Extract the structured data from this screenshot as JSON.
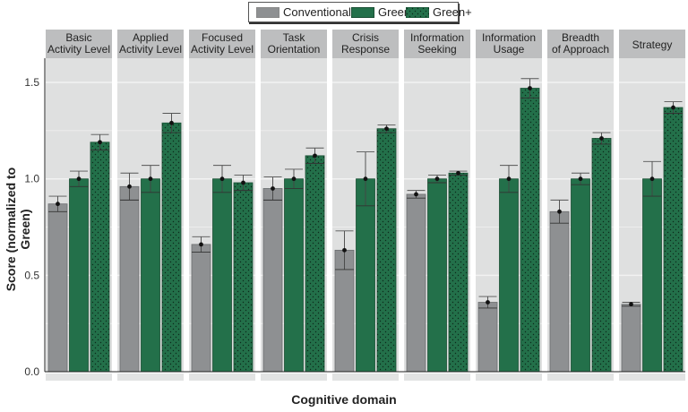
{
  "chart_data": {
    "type": "bar",
    "title": "",
    "xlabel": "Cognitive domain",
    "ylabel": "Score (normalized to Green)",
    "ylim": [
      0,
      1.6
    ],
    "yticks": [
      "0.0",
      "0.5",
      "1.0",
      "1.5"
    ],
    "ytick_values": [
      0,
      0.5,
      1.0,
      1.5
    ],
    "grid": true,
    "legend_position": "top-center",
    "categories": [
      [
        "Basic",
        "Activity Level"
      ],
      [
        "Applied",
        "Activity Level"
      ],
      [
        "Focused",
        "Activity Level"
      ],
      [
        "Task",
        "Orientation"
      ],
      [
        "Crisis",
        "Response"
      ],
      [
        "Information",
        "Seeking"
      ],
      [
        "Information",
        "Usage"
      ],
      [
        "Breadth",
        "of Approach"
      ],
      [
        "Strategy"
      ]
    ],
    "series": [
      {
        "name": "Conventional",
        "color": "#8e9092",
        "pattern": "none",
        "values": [
          0.87,
          0.96,
          0.66,
          0.95,
          0.63,
          0.92,
          0.36,
          0.83,
          0.35
        ],
        "errors": [
          0.04,
          0.07,
          0.04,
          0.06,
          0.1,
          0.02,
          0.03,
          0.06,
          0.01
        ]
      },
      {
        "name": "Green",
        "color": "#23704a",
        "pattern": "none",
        "values": [
          1.0,
          1.0,
          1.0,
          1.0,
          1.0,
          1.0,
          1.0,
          1.0,
          1.0
        ],
        "errors": [
          0.04,
          0.07,
          0.07,
          0.05,
          0.14,
          0.02,
          0.07,
          0.03,
          0.09
        ]
      },
      {
        "name": "Green+",
        "color": "#23704a",
        "pattern": "dots",
        "values": [
          1.19,
          1.29,
          0.98,
          1.12,
          1.26,
          1.03,
          1.47,
          1.21,
          1.37
        ],
        "errors": [
          0.04,
          0.05,
          0.04,
          0.04,
          0.02,
          0.01,
          0.05,
          0.03,
          0.03
        ]
      }
    ]
  }
}
